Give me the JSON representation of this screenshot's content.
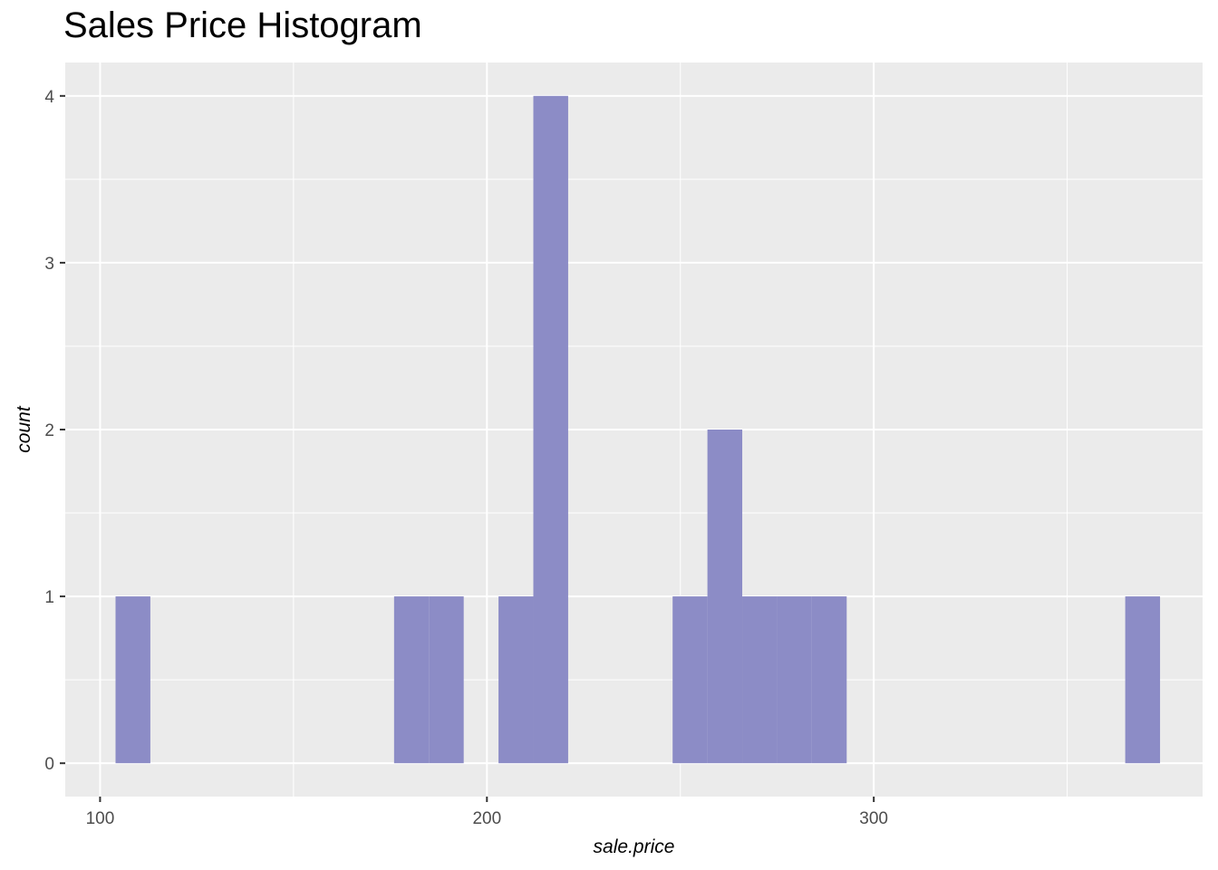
{
  "chart_data": {
    "type": "bar",
    "title": "Sales Price Histogram",
    "xlabel": "sale.price",
    "ylabel": "count",
    "xlim": [
      91,
      385
    ],
    "ylim": [
      -0.2,
      4.2
    ],
    "grid": true,
    "x_ticks": [
      100,
      200,
      300
    ],
    "x_tick_labels": [
      "100",
      "200",
      "300"
    ],
    "y_ticks": [
      0,
      1,
      2,
      3,
      4
    ],
    "y_tick_labels": [
      "0",
      "1",
      "2",
      "3",
      "4"
    ],
    "bin_width": 9,
    "bins": [
      {
        "x0": 104,
        "x1": 113,
        "count": 1
      },
      {
        "x0": 176,
        "x1": 185,
        "count": 1
      },
      {
        "x0": 185,
        "x1": 194,
        "count": 1
      },
      {
        "x0": 203,
        "x1": 212,
        "count": 1
      },
      {
        "x0": 212,
        "x1": 221,
        "count": 4
      },
      {
        "x0": 248,
        "x1": 257,
        "count": 1
      },
      {
        "x0": 257,
        "x1": 266,
        "count": 2
      },
      {
        "x0": 266,
        "x1": 275,
        "count": 1
      },
      {
        "x0": 275,
        "x1": 284,
        "count": 1
      },
      {
        "x0": 284,
        "x1": 293,
        "count": 1
      },
      {
        "x0": 365,
        "x1": 374,
        "count": 1
      }
    ],
    "colors": {
      "bar": "#8C8CC6",
      "panel": "#EBEBEB",
      "grid": "#FFFFFF"
    }
  }
}
